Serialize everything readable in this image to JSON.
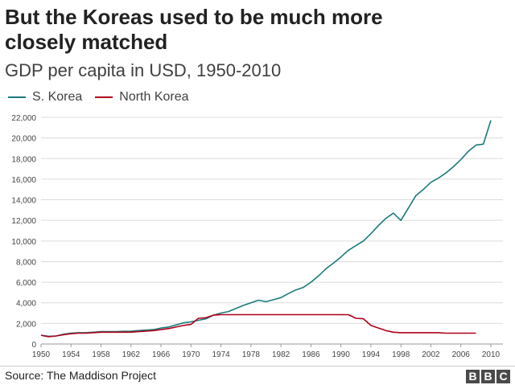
{
  "header": {
    "title": "But the Koreas used to be much more closely matched",
    "subtitle": "GDP per capita in USD, 1950-2010"
  },
  "footer": {
    "source": "Source: The Maddison Project",
    "logo_letters": [
      "B",
      "B",
      "C"
    ]
  },
  "colors": {
    "s_korea": "#1b7a7a",
    "north_korea": "#b0001a",
    "grid": "#dcdcdc",
    "axis_text": "#444444"
  },
  "chart_data": {
    "type": "line",
    "title": "But the Koreas used to be much more closely matched",
    "subtitle": "GDP per capita in USD, 1950-2010",
    "xlabel": "",
    "ylabel": "",
    "xlim": [
      1950,
      2010
    ],
    "ylim": [
      0,
      22000
    ],
    "x_ticks": [
      1950,
      1954,
      1958,
      1962,
      1966,
      1970,
      1974,
      1978,
      1982,
      1986,
      1990,
      1994,
      1998,
      2002,
      2006,
      2010
    ],
    "y_ticks": [
      0,
      2000,
      4000,
      6000,
      8000,
      10000,
      12000,
      14000,
      16000,
      18000,
      20000,
      22000
    ],
    "x_tick_labels": [
      "1950",
      "1954",
      "1958",
      "1962",
      "1966",
      "1970",
      "1974",
      "1978",
      "1982",
      "1986",
      "1990",
      "1994",
      "1998",
      "2002",
      "2006",
      "2010"
    ],
    "y_tick_labels": [
      "0",
      "2,000",
      "4,000",
      "6,000",
      "8,000",
      "10,000",
      "12,000",
      "14,000",
      "16,000",
      "18,000",
      "20,000",
      "22,000"
    ],
    "grid": true,
    "legend_position": "top-left",
    "series": [
      {
        "name": "S. Korea",
        "color": "#1b7a7a",
        "points": [
          [
            1950,
            850
          ],
          [
            1951,
            750
          ],
          [
            1952,
            780
          ],
          [
            1953,
            950
          ],
          [
            1954,
            1050
          ],
          [
            1955,
            1100
          ],
          [
            1956,
            1100
          ],
          [
            1957,
            1150
          ],
          [
            1958,
            1200
          ],
          [
            1959,
            1200
          ],
          [
            1960,
            1200
          ],
          [
            1961,
            1230
          ],
          [
            1962,
            1250
          ],
          [
            1963,
            1300
          ],
          [
            1964,
            1350
          ],
          [
            1965,
            1400
          ],
          [
            1966,
            1550
          ],
          [
            1967,
            1650
          ],
          [
            1968,
            1850
          ],
          [
            1969,
            2050
          ],
          [
            1970,
            2150
          ],
          [
            1971,
            2300
          ],
          [
            1972,
            2450
          ],
          [
            1973,
            2800
          ],
          [
            1974,
            3000
          ],
          [
            1975,
            3150
          ],
          [
            1976,
            3450
          ],
          [
            1977,
            3750
          ],
          [
            1978,
            4000
          ],
          [
            1979,
            4250
          ],
          [
            1980,
            4100
          ],
          [
            1981,
            4300
          ],
          [
            1982,
            4500
          ],
          [
            1983,
            4900
          ],
          [
            1984,
            5250
          ],
          [
            1985,
            5500
          ],
          [
            1986,
            6000
          ],
          [
            1987,
            6600
          ],
          [
            1988,
            7300
          ],
          [
            1989,
            7850
          ],
          [
            1990,
            8450
          ],
          [
            1991,
            9100
          ],
          [
            1992,
            9550
          ],
          [
            1993,
            10000
          ],
          [
            1994,
            10700
          ],
          [
            1995,
            11500
          ],
          [
            1996,
            12200
          ],
          [
            1997,
            12700
          ],
          [
            1998,
            12000
          ],
          [
            1999,
            13200
          ],
          [
            2000,
            14400
          ],
          [
            2001,
            15000
          ],
          [
            2002,
            15700
          ],
          [
            2003,
            16100
          ],
          [
            2004,
            16600
          ],
          [
            2005,
            17200
          ],
          [
            2006,
            17900
          ],
          [
            2007,
            18700
          ],
          [
            2008,
            19300
          ],
          [
            2009,
            19400
          ],
          [
            2010,
            21700
          ]
        ]
      },
      {
        "name": "North Korea",
        "color": "#b0001a",
        "points": [
          [
            1950,
            850
          ],
          [
            1951,
            700
          ],
          [
            1952,
            780
          ],
          [
            1953,
            900
          ],
          [
            1954,
            1000
          ],
          [
            1955,
            1050
          ],
          [
            1956,
            1050
          ],
          [
            1957,
            1100
          ],
          [
            1958,
            1150
          ],
          [
            1959,
            1150
          ],
          [
            1960,
            1150
          ],
          [
            1961,
            1150
          ],
          [
            1962,
            1150
          ],
          [
            1963,
            1200
          ],
          [
            1964,
            1250
          ],
          [
            1965,
            1300
          ],
          [
            1966,
            1400
          ],
          [
            1967,
            1500
          ],
          [
            1968,
            1650
          ],
          [
            1969,
            1800
          ],
          [
            1970,
            1900
          ],
          [
            1971,
            2500
          ],
          [
            1972,
            2550
          ],
          [
            1973,
            2800
          ],
          [
            1974,
            2850
          ],
          [
            1976,
            2850
          ],
          [
            1978,
            2850
          ],
          [
            1980,
            2850
          ],
          [
            1982,
            2850
          ],
          [
            1984,
            2850
          ],
          [
            1986,
            2850
          ],
          [
            1988,
            2850
          ],
          [
            1990,
            2850
          ],
          [
            1991,
            2850
          ],
          [
            1992,
            2500
          ],
          [
            1993,
            2450
          ],
          [
            1994,
            1800
          ],
          [
            1995,
            1550
          ],
          [
            1996,
            1300
          ],
          [
            1997,
            1150
          ],
          [
            1998,
            1100
          ],
          [
            1999,
            1100
          ],
          [
            2000,
            1100
          ],
          [
            2001,
            1100
          ],
          [
            2002,
            1100
          ],
          [
            2003,
            1100
          ],
          [
            2004,
            1050
          ],
          [
            2005,
            1050
          ],
          [
            2006,
            1050
          ],
          [
            2007,
            1050
          ],
          [
            2008,
            1050
          ]
        ]
      }
    ]
  }
}
